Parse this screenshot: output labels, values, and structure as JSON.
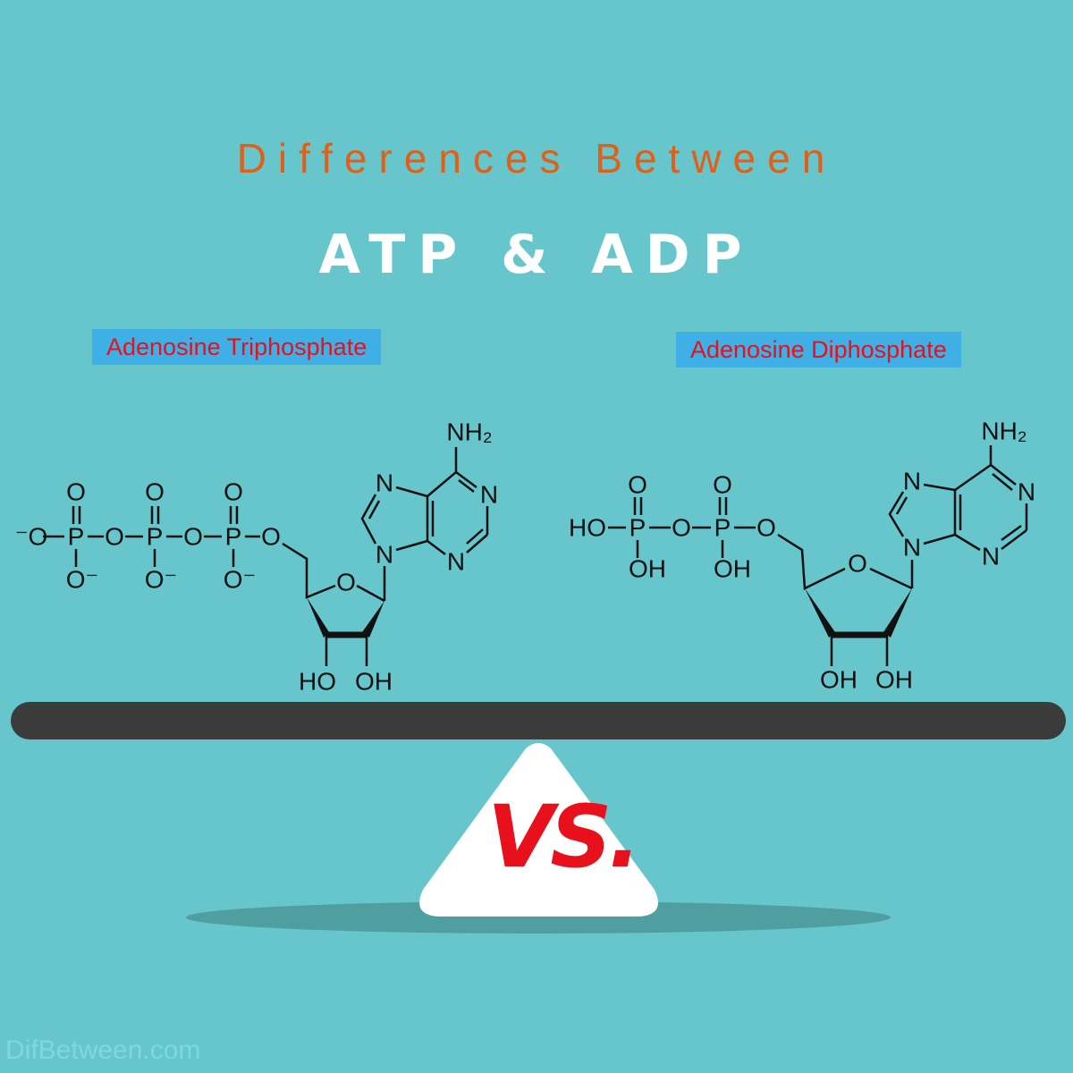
{
  "header": {
    "subtitle": "Differences Between",
    "title": "ATP & ADP"
  },
  "atp": {
    "name": "Adenosine Triphosphate",
    "labels": [
      "⁻O",
      "P",
      "O",
      "P",
      "O",
      "P",
      "O",
      "O",
      "O",
      "O",
      "O⁻",
      "O⁻",
      "O⁻",
      "O",
      "N",
      "N",
      "N",
      "N",
      "NH₂",
      "HO",
      "OH"
    ]
  },
  "adp": {
    "name": "Adenosine  Diphosphate",
    "labels": [
      "HO",
      "P",
      "O",
      "P",
      "O",
      "O",
      "O",
      "OH",
      "OH",
      "O",
      "N",
      "N",
      "N",
      "N",
      "NH₂",
      "OH",
      "OH"
    ]
  },
  "balance": {
    "vs_label": "VS."
  },
  "watermark": "DifBetween.com",
  "colors": {
    "background": "#66c6cc",
    "subtitle": "#e0601a",
    "label_bg": "#3eb0e6",
    "label_text": "#e8101a",
    "beam": "#3b3b3b"
  }
}
